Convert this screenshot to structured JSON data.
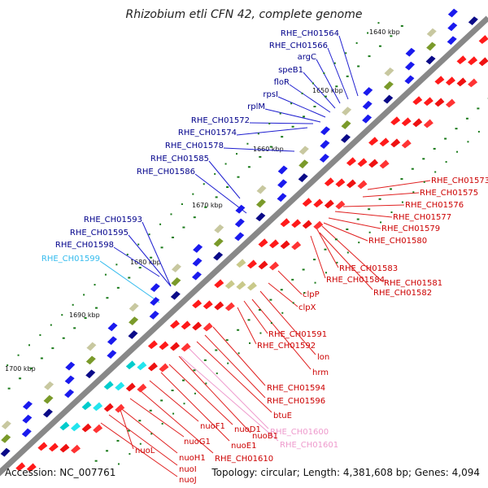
{
  "title": "Rhizobium etli CFN 42, complete genome",
  "footer": {
    "accession": "Accession: NC_007761",
    "summary": "Topology: circular; Length: 4,381,608 bp; Genes: 4,094"
  },
  "scale_labels": [
    "1640 kbp",
    "1650 kbp",
    "1660 kbp",
    "1670 kbp",
    "1680 kbp",
    "1690 kbp",
    "1700 kbp"
  ],
  "colors": {
    "backbone": "#888888",
    "plus_strand_label": "#00008b",
    "minus_strand_label": "#cc0000",
    "rna_label_light_blue": "#33ccff",
    "rna_label_pink": "#ee99cc",
    "tick": "#1a7a1a"
  },
  "plus_labels": [
    {
      "text": "RHE_CH01564",
      "color": "#00008b"
    },
    {
      "text": "RHE_CH01566",
      "color": "#00008b"
    },
    {
      "text": "argC",
      "color": "#00008b"
    },
    {
      "text": "speB1",
      "color": "#00008b"
    },
    {
      "text": "floR",
      "color": "#00008b"
    },
    {
      "text": "rpsI",
      "color": "#00008b"
    },
    {
      "text": "rplM",
      "color": "#00008b"
    },
    {
      "text": "RHE_CH01572",
      "color": "#00008b"
    },
    {
      "text": "RHE_CH01574",
      "color": "#00008b"
    },
    {
      "text": "RHE_CH01578",
      "color": "#00008b"
    },
    {
      "text": "RHE_CH01585",
      "color": "#00008b"
    },
    {
      "text": "RHE_CH01586",
      "color": "#00008b"
    },
    {
      "text": "RHE_CH01593",
      "color": "#00008b"
    },
    {
      "text": "RHE_CH01595",
      "color": "#00008b"
    },
    {
      "text": "RHE_CH01598",
      "color": "#00008b"
    },
    {
      "text": "RHE_CH01599",
      "color": "#33bbee"
    }
  ],
  "minus_labels": [
    {
      "text": "RHE_CH01573",
      "color": "#cc0000"
    },
    {
      "text": "RHE_CH01575",
      "color": "#cc0000"
    },
    {
      "text": "RHE_CH01576",
      "color": "#cc0000"
    },
    {
      "text": "RHE_CH01577",
      "color": "#cc0000"
    },
    {
      "text": "RHE_CH01579",
      "color": "#cc0000"
    },
    {
      "text": "RHE_CH01580",
      "color": "#cc0000"
    },
    {
      "text": "RHE_CH01583",
      "color": "#cc0000"
    },
    {
      "text": "RHE_CH01581",
      "color": "#cc0000"
    },
    {
      "text": "RHE_CH01584",
      "color": "#cc0000"
    },
    {
      "text": "RHE_CH01582",
      "color": "#cc0000"
    },
    {
      "text": "clpP",
      "color": "#cc0000"
    },
    {
      "text": "clpX",
      "color": "#cc0000"
    },
    {
      "text": "RHE_CH01591",
      "color": "#cc0000"
    },
    {
      "text": "RHE_CH01592",
      "color": "#cc0000"
    },
    {
      "text": "lon",
      "color": "#cc0000"
    },
    {
      "text": "hrm",
      "color": "#cc0000"
    },
    {
      "text": "RHE_CH01594",
      "color": "#cc0000"
    },
    {
      "text": "RHE_CH01596",
      "color": "#cc0000"
    },
    {
      "text": "btuE",
      "color": "#cc0000"
    },
    {
      "text": "RHE_CH01600",
      "color": "#ee99cc"
    },
    {
      "text": "RHE_CH01601",
      "color": "#ee99cc"
    },
    {
      "text": "nuoB1",
      "color": "#cc0000"
    },
    {
      "text": "nuoD1",
      "color": "#cc0000"
    },
    {
      "text": "nuoE1",
      "color": "#cc0000"
    },
    {
      "text": "nuoF1",
      "color": "#cc0000"
    },
    {
      "text": "RHE_CH01610",
      "color": "#cc0000"
    },
    {
      "text": "nuoG1",
      "color": "#cc0000"
    },
    {
      "text": "nuoH1",
      "color": "#cc0000"
    },
    {
      "text": "nuoI",
      "color": "#cc0000"
    },
    {
      "text": "nuoJ",
      "color": "#cc0000"
    },
    {
      "text": "nuoL",
      "color": "#cc0000"
    }
  ]
}
